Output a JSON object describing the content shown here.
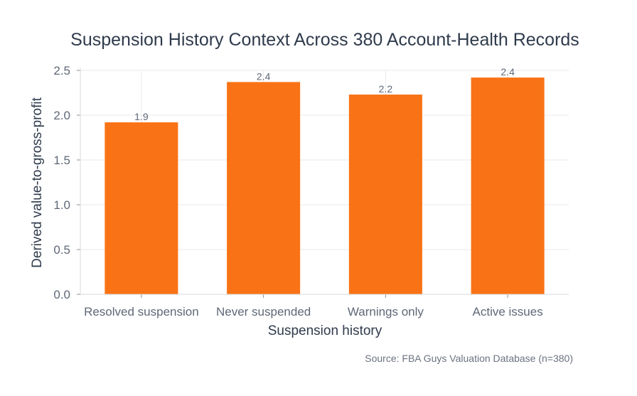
{
  "chart_data": {
    "type": "bar",
    "title": "Suspension History Context Across 380 Account-Health Records",
    "xlabel": "Suspension history",
    "ylabel": "Derived value-to-gross-profit",
    "categories": [
      "Resolved suspension",
      "Never suspended",
      "Warnings only",
      "Active issues"
    ],
    "values": [
      1.92,
      2.37,
      2.23,
      2.42
    ],
    "data_labels": [
      "1.9",
      "2.4",
      "2.2",
      "2.4"
    ],
    "ylim": [
      0,
      2.5
    ],
    "yticks": [
      0,
      0.5,
      1.0,
      1.5,
      2.0,
      2.5
    ],
    "ytick_labels": [
      "0.0",
      "0.5",
      "1.0",
      "1.5",
      "2.0",
      "2.5"
    ],
    "grid": true,
    "bar_color": "#f97316",
    "source": "Source: FBA Guys Valuation Database (n=380)"
  }
}
